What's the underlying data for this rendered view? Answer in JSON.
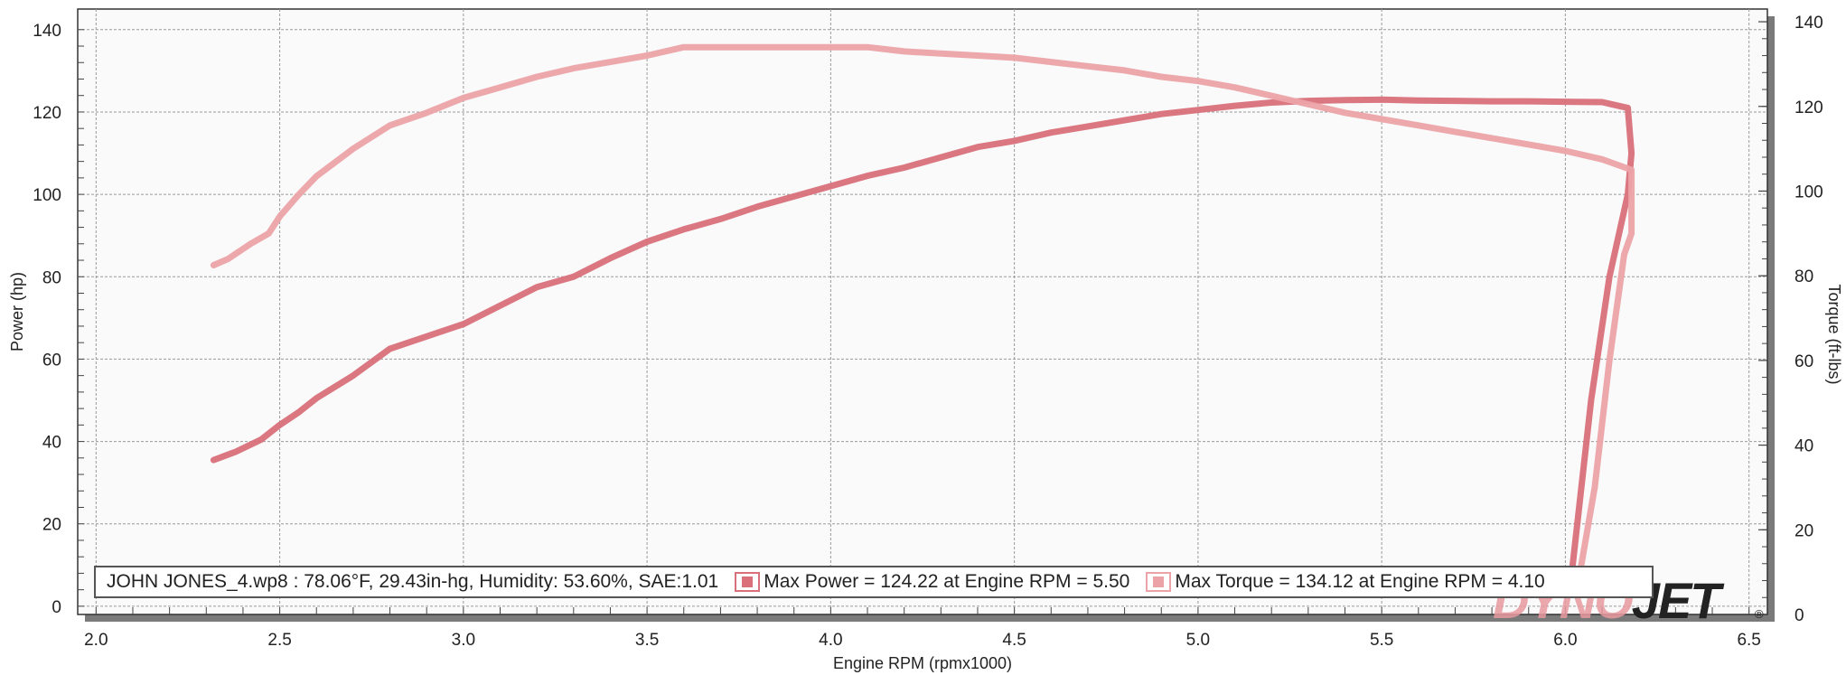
{
  "chart_data": {
    "type": "line",
    "xlabel": "Engine RPM (rpmx1000)",
    "ylabel_left": "Power (hp)",
    "ylabel_right": "Torque (ft-lbs)",
    "xlim": [
      1.95,
      6.55
    ],
    "ylim_left": [
      -2,
      145
    ],
    "ylim_right": [
      0,
      143
    ],
    "x_ticks": [
      "2.0",
      "2.5",
      "3.0",
      "3.5",
      "4.0",
      "4.5",
      "5.0",
      "5.5",
      "6.0",
      "6.5"
    ],
    "y_ticks_left": [
      "0",
      "20",
      "40",
      "60",
      "80",
      "100",
      "120",
      "140"
    ],
    "y_ticks_right": [
      "0",
      "20",
      "40",
      "60",
      "80",
      "100",
      "120",
      "140"
    ],
    "grid": true,
    "colors": {
      "power": "#d9707a",
      "torque": "#eca3a8"
    },
    "series": [
      {
        "key": "power",
        "axis": "left",
        "x": [
          2.32,
          2.38,
          2.45,
          2.5,
          2.55,
          2.6,
          2.7,
          2.8,
          2.9,
          3.0,
          3.1,
          3.2,
          3.3,
          3.4,
          3.5,
          3.6,
          3.7,
          3.8,
          3.9,
          4.0,
          4.1,
          4.2,
          4.3,
          4.4,
          4.5,
          4.6,
          4.7,
          4.8,
          4.9,
          5.0,
          5.1,
          5.2,
          5.3,
          5.4,
          5.5,
          5.6,
          5.7,
          5.8,
          5.9,
          6.0,
          6.1,
          6.17,
          6.18,
          6.17,
          6.12,
          6.07,
          6.02
        ],
        "y": [
          35.5,
          37.5,
          40.5,
          44,
          47,
          50.5,
          56,
          62.5,
          65.5,
          68.5,
          73,
          77.5,
          80,
          84.5,
          88.5,
          91.5,
          94,
          97,
          99.5,
          102,
          104.5,
          106.5,
          109,
          111.5,
          113,
          115,
          116.5,
          118,
          119.5,
          120.5,
          121.5,
          122.3,
          122.7,
          122.9,
          123,
          122.8,
          122.7,
          122.6,
          122.6,
          122.5,
          122.4,
          121,
          110,
          100,
          80,
          50,
          10
        ]
      },
      {
        "key": "torque",
        "axis": "right",
        "x": [
          2.32,
          2.36,
          2.42,
          2.47,
          2.5,
          2.55,
          2.6,
          2.7,
          2.8,
          2.9,
          3.0,
          3.1,
          3.2,
          3.3,
          3.4,
          3.5,
          3.6,
          3.7,
          3.8,
          3.9,
          4.0,
          4.1,
          4.2,
          4.3,
          4.4,
          4.5,
          4.6,
          4.7,
          4.8,
          4.9,
          5.0,
          5.1,
          5.2,
          5.3,
          5.4,
          5.5,
          5.6,
          5.7,
          5.8,
          5.9,
          6.0,
          6.1,
          6.18,
          6.18,
          6.16,
          6.12,
          6.08,
          6.04
        ],
        "y": [
          82.5,
          84,
          87.5,
          90,
          94,
          99,
          103.5,
          110,
          115.5,
          118.5,
          122,
          124.5,
          127,
          129,
          130.5,
          132,
          134,
          134,
          134,
          134,
          134,
          134,
          133,
          132.5,
          132,
          131.5,
          130.5,
          129.5,
          128.5,
          127,
          126,
          124.5,
          122.5,
          120.5,
          118.5,
          117,
          115.5,
          114,
          112.5,
          111,
          109.5,
          107.5,
          105,
          90,
          85,
          60,
          30,
          10
        ]
      }
    ],
    "legend": {
      "run_info": "JOHN JONES_4.wp8 : 78.06°F, 29.43in-hg, Humidity: 53.60%, SAE:1.01",
      "entries": [
        {
          "key": "power",
          "label": "Max Power = 124.22 at Engine RPM = 5.50"
        },
        {
          "key": "torque",
          "label": "Max Torque = 134.12 at Engine RPM = 4.10"
        }
      ],
      "placement": "bottom"
    }
  },
  "branding": {
    "logo_part1": "DYNO",
    "logo_part2": "JET",
    "registered": "®"
  }
}
